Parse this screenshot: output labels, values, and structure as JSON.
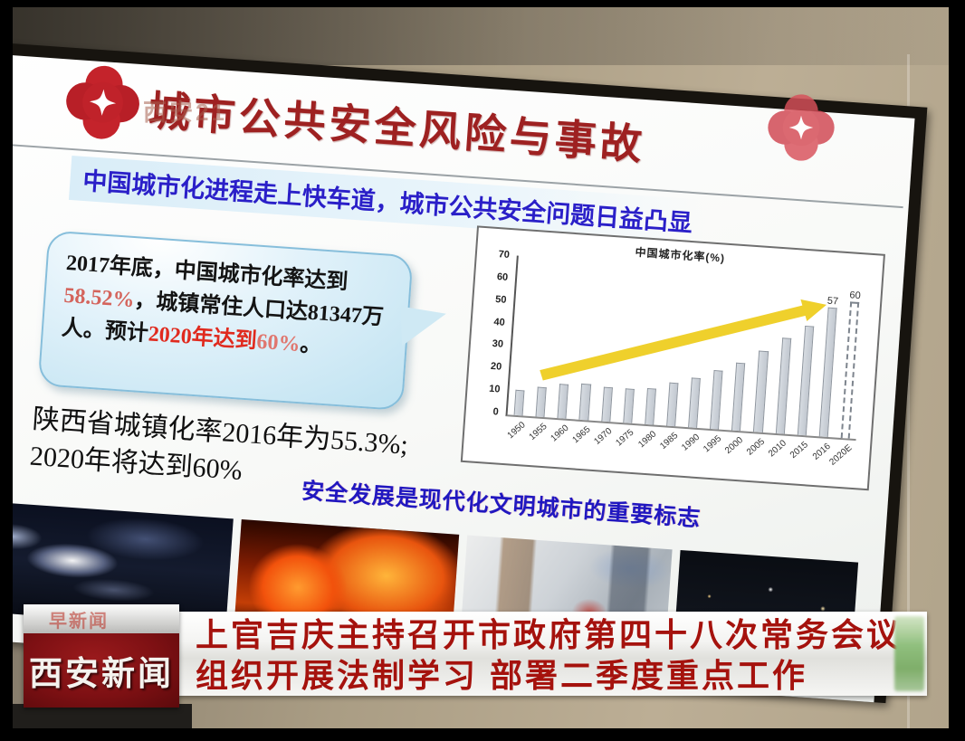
{
  "station": {
    "flower_logo": "red-clover-star-logo",
    "channel_watermark": "西安21",
    "logo_top_label": "早新闻",
    "logo_main_label": "西安新闻"
  },
  "slide": {
    "title": "城市公共安全风险与事故",
    "subtitle": "中国城市化进程走上快车道，城市公共安全问题日益凸显",
    "bubble": {
      "part1": "2017年底，中国城市化率达到",
      "highlight1": "58.52%",
      "part2": "，城镇常住人口达81347万人。预计",
      "highlight2": "2020年达到",
      "highlight3": "60%",
      "part3": "。"
    },
    "shaanxi_note": "陕西省城镇化率2016年为55.3%; 2020年将达到60%",
    "slogan": "安全发展是现代化文明城市的重要标志",
    "photos": [
      "night-scene-with-lights",
      "building-fire",
      "accident-room-interior",
      "city-night-skyline"
    ]
  },
  "chart_data": {
    "type": "bar",
    "title": "中国城市化率(%)",
    "categories": [
      "1950",
      "1955",
      "1960",
      "1965",
      "1970",
      "1975",
      "1980",
      "1985",
      "1990",
      "1995",
      "2000",
      "2005",
      "2010",
      "2015",
      "2016",
      "2020E"
    ],
    "values": [
      11,
      13,
      15,
      16,
      15,
      15,
      16,
      19,
      22,
      26,
      30,
      36,
      42,
      48,
      57,
      60
    ],
    "data_labels": [
      "",
      "",
      "",
      "",
      "",
      "",
      "",
      "",
      "",
      "",
      "",
      "",
      "",
      "",
      "57",
      "60"
    ],
    "ylim": [
      0,
      70
    ],
    "yticks": [
      0,
      10,
      20,
      30,
      40,
      50,
      60,
      70
    ],
    "dashed_categories": [
      "2020E"
    ],
    "grid": false,
    "legend": "none",
    "annotation": "yellow upward trend arrow from 1955 toward 2016 bar",
    "xlabel": "",
    "ylabel": ""
  },
  "caption": {
    "line1": "上官吉庆主持召开市政府第四十八次常务会议",
    "line2": "组织开展法制学习 部署二季度重点工作"
  },
  "colors": {
    "title_red": "#9e2121",
    "subtitle_blue": "#2a1fc8",
    "slogan_blue": "#2017c0",
    "highlight_red": "#e02a1e",
    "highlight_salmon": "#d4645c",
    "caption_red": "#a5120d",
    "logo_box_red": "#7d1013",
    "bubble_fill": "#bfe2f1",
    "arrow_yellow": "#efd02c",
    "bar_fill": "#ccd2da",
    "wall_beige": "#b2a58c"
  }
}
